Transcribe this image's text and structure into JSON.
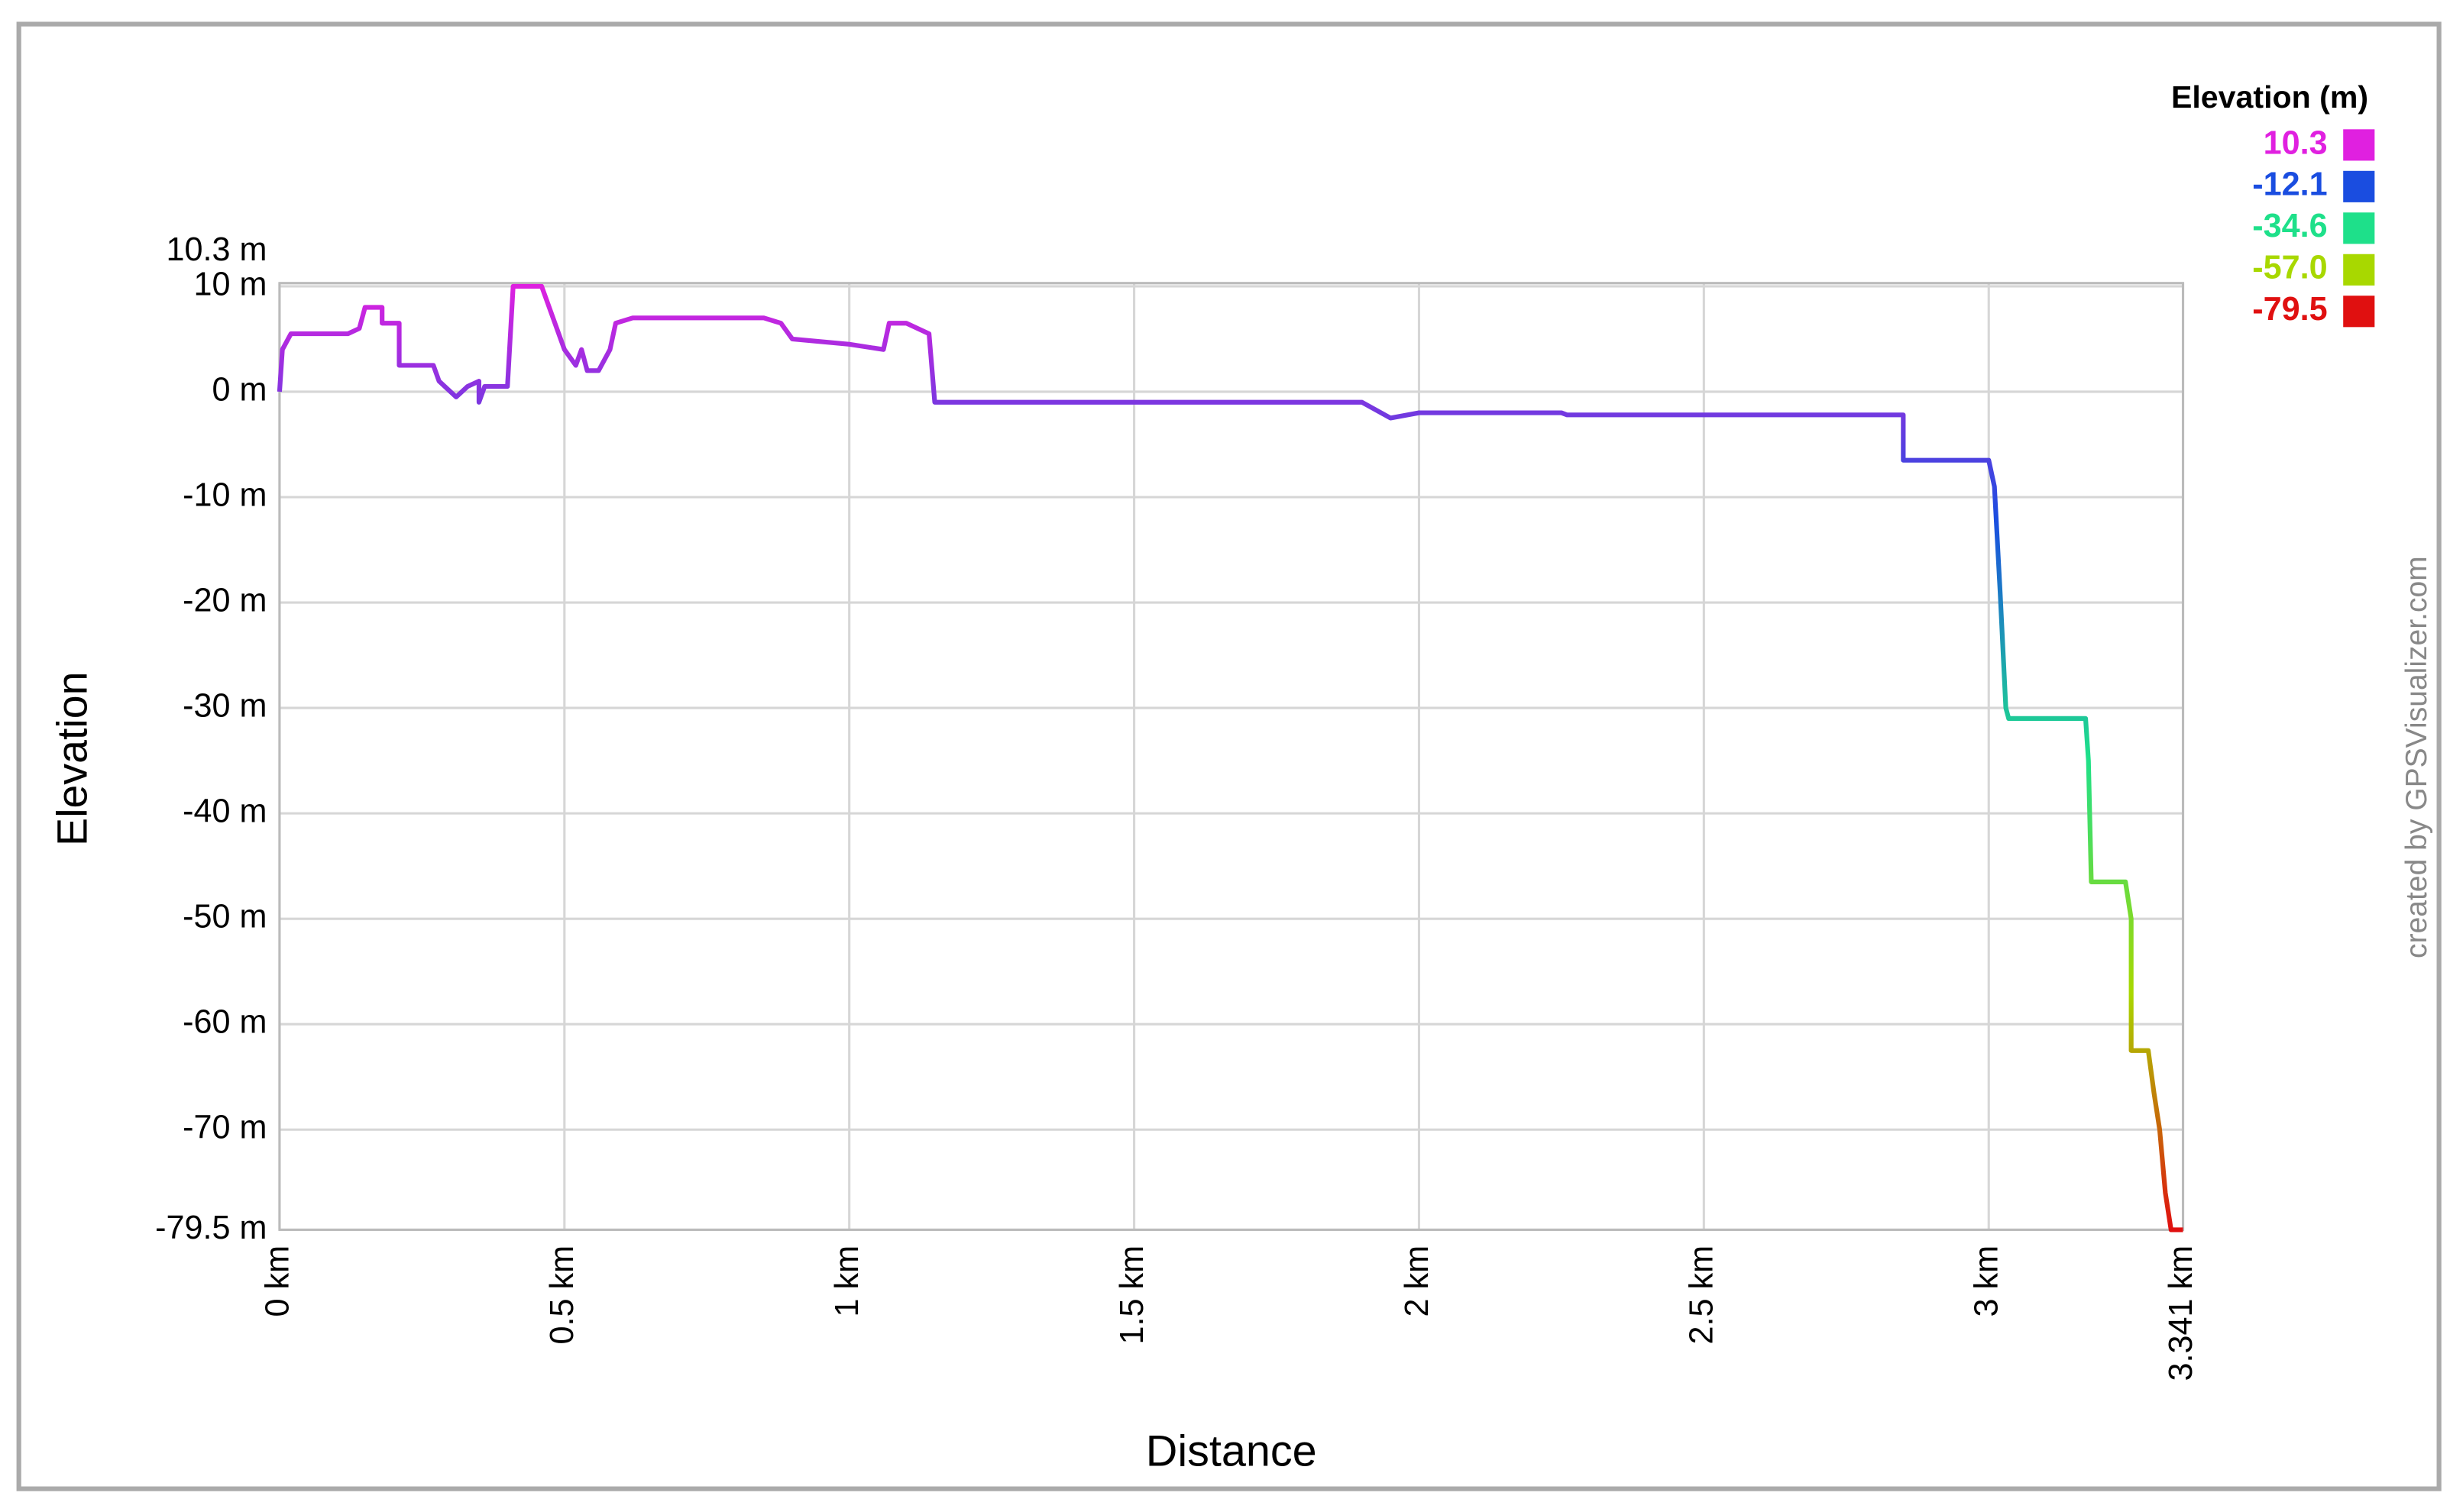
{
  "chart_data": {
    "type": "line",
    "x_label": "Distance",
    "y_label": "Elevation",
    "credit": "created by GPSVisualizer.com",
    "xlim": [
      0,
      3.341
    ],
    "ylim": [
      -79.5,
      10.3
    ],
    "xticks": [
      {
        "value": 0,
        "label": "0 km"
      },
      {
        "value": 0.5,
        "label": "0.5 km"
      },
      {
        "value": 1,
        "label": "1 km"
      },
      {
        "value": 1.5,
        "label": "1.5 km"
      },
      {
        "value": 2,
        "label": "2 km"
      },
      {
        "value": 2.5,
        "label": "2.5 km"
      },
      {
        "value": 3,
        "label": "3 km"
      },
      {
        "value": 3.341,
        "label": "3.341 km"
      }
    ],
    "yticks": [
      {
        "value": 10.3,
        "label": "10.3 m"
      },
      {
        "value": 10,
        "label": "10 m"
      },
      {
        "value": 0,
        "label": "0 m"
      },
      {
        "value": -10,
        "label": "-10 m"
      },
      {
        "value": -20,
        "label": "-20 m"
      },
      {
        "value": -30,
        "label": "-30 m"
      },
      {
        "value": -40,
        "label": "-40 m"
      },
      {
        "value": -50,
        "label": "-50 m"
      },
      {
        "value": -60,
        "label": "-60 m"
      },
      {
        "value": -70,
        "label": "-70 m"
      },
      {
        "value": -79.5,
        "label": "-79.5 m"
      }
    ],
    "grid": true,
    "x": [
      0,
      0.005,
      0.02,
      0.12,
      0.14,
      0.15,
      0.18,
      0.18,
      0.21,
      0.21,
      0.27,
      0.28,
      0.31,
      0.33,
      0.35,
      0.35,
      0.36,
      0.4,
      0.41,
      0.46,
      0.48,
      0.5,
      0.52,
      0.53,
      0.54,
      0.56,
      0.58,
      0.59,
      0.62,
      0.85,
      0.88,
      0.9,
      1,
      1.06,
      1.07,
      1.1,
      1.14,
      1.15,
      1.9,
      1.95,
      2,
      2.25,
      2.26,
      2.85,
      2.85,
      3,
      3.01,
      3.02,
      3.03,
      3.035,
      3.17,
      3.175,
      3.18,
      3.24,
      3.25,
      3.25,
      3.28,
      3.29,
      3.3,
      3.31,
      3.32,
      3.341
    ],
    "values": [
      0,
      4,
      5.5,
      5.5,
      6,
      8,
      8,
      6.5,
      6.5,
      2.5,
      2.5,
      1,
      -0.5,
      0.5,
      1,
      -1,
      0.5,
      0.5,
      10,
      10,
      7,
      4,
      2.5,
      4,
      2,
      2,
      4,
      6.5,
      7,
      7,
      6.5,
      5,
      4.5,
      4,
      6.5,
      6.5,
      5.5,
      -1,
      -1,
      -2.5,
      -2,
      -2,
      -2.2,
      -2.2,
      -6.5,
      -6.5,
      -9,
      -19,
      -30,
      -31,
      -31,
      -35,
      -46.5,
      -46.5,
      -50,
      -62.5,
      -62.5,
      -66.5,
      -70,
      -76,
      -79.5,
      -79.5
    ],
    "color_scale": {
      "title": "Elevation (m)",
      "values": [
        10.3,
        -12.1,
        -34.6,
        -57,
        -79.5
      ],
      "value_labels": [
        "10.3",
        "-12.1",
        "-34.6",
        "-57.0",
        "-79.5"
      ],
      "colors": [
        "#e020e0",
        "#1a4de0",
        "#1ee08a",
        "#a8d800",
        "#e01010"
      ]
    }
  }
}
